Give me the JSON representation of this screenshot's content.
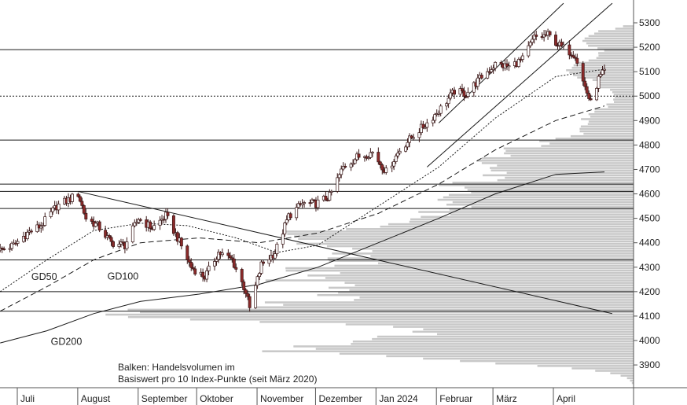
{
  "chart_data": {
    "type": "candlestick",
    "y_axis": {
      "ticks": [
        5300,
        5200,
        5100,
        5000,
        4900,
        4800,
        4700,
        4600,
        4500,
        4400,
        4300,
        4200,
        4100,
        4000,
        3900
      ],
      "range": [
        3810,
        5340
      ],
      "position": "right"
    },
    "x_axis": {
      "months": [
        {
          "label": "Juli",
          "date": "2023-07-01"
        },
        {
          "label": "August",
          "date": "2023-08-01"
        },
        {
          "label": "September",
          "date": "2023-09-01"
        },
        {
          "label": "Oktober",
          "date": "2023-10-01"
        },
        {
          "label": "November",
          "date": "2023-11-01"
        },
        {
          "label": "Dezember",
          "date": "2023-12-01"
        },
        {
          "label": "Jan 2024",
          "date": "2024-01-01"
        },
        {
          "label": "Februar",
          "date": "2024-02-01"
        },
        {
          "label": "März",
          "date": "2024-03-01"
        },
        {
          "label": "April",
          "date": "2024-04-01"
        }
      ]
    },
    "close_path": [
      [
        "2023-06-21",
        4370
      ],
      [
        "2023-06-28",
        4390
      ],
      [
        "2023-07-05",
        4440
      ],
      [
        "2023-07-12",
        4470
      ],
      [
        "2023-07-20",
        4550
      ],
      [
        "2023-07-27",
        4580
      ],
      [
        "2023-07-31",
        4600
      ],
      [
        "2023-08-04",
        4500
      ],
      [
        "2023-08-10",
        4470
      ],
      [
        "2023-08-17",
        4400
      ],
      [
        "2023-08-24",
        4390
      ],
      [
        "2023-08-31",
        4500
      ],
      [
        "2023-09-07",
        4460
      ],
      [
        "2023-09-14",
        4510
      ],
      [
        "2023-09-20",
        4420
      ],
      [
        "2023-09-27",
        4300
      ],
      [
        "2023-10-04",
        4260
      ],
      [
        "2023-10-11",
        4360
      ],
      [
        "2023-10-18",
        4330
      ],
      [
        "2023-10-25",
        4200
      ],
      [
        "2023-10-27",
        4130
      ],
      [
        "2023-11-02",
        4310
      ],
      [
        "2023-11-09",
        4360
      ],
      [
        "2023-11-16",
        4510
      ],
      [
        "2023-11-23",
        4560
      ],
      [
        "2023-11-30",
        4560
      ],
      [
        "2023-12-07",
        4590
      ],
      [
        "2023-12-14",
        4710
      ],
      [
        "2023-12-21",
        4750
      ],
      [
        "2023-12-29",
        4770
      ],
      [
        "2024-01-05",
        4690
      ],
      [
        "2024-01-12",
        4780
      ],
      [
        "2024-01-19",
        4840
      ],
      [
        "2024-01-26",
        4890
      ],
      [
        "2024-02-02",
        4950
      ],
      [
        "2024-02-09",
        5020
      ],
      [
        "2024-02-15",
        5010
      ],
      [
        "2024-02-23",
        5080
      ],
      [
        "2024-03-01",
        5130
      ],
      [
        "2024-03-08",
        5120
      ],
      [
        "2024-03-15",
        5150
      ],
      [
        "2024-03-21",
        5240
      ],
      [
        "2024-03-28",
        5250
      ],
      [
        "2024-04-04",
        5200
      ],
      [
        "2024-04-11",
        5170
      ],
      [
        "2024-04-15",
        5060
      ],
      [
        "2024-04-19",
        4970
      ],
      [
        "2024-04-23",
        5070
      ],
      [
        "2024-04-26",
        5100
      ]
    ],
    "moving_averages": [
      {
        "name": "GD50",
        "style": "dotted",
        "points": [
          [
            "2023-06-21",
            4200
          ],
          [
            "2023-07-15",
            4330
          ],
          [
            "2023-08-08",
            4450
          ],
          [
            "2023-09-01",
            4480
          ],
          [
            "2023-09-25",
            4470
          ],
          [
            "2023-10-20",
            4420
          ],
          [
            "2023-11-10",
            4360
          ],
          [
            "2023-12-01",
            4390
          ],
          [
            "2024-01-01",
            4550
          ],
          [
            "2024-02-01",
            4710
          ],
          [
            "2024-03-01",
            4910
          ],
          [
            "2024-04-01",
            5080
          ],
          [
            "2024-04-26",
            5110
          ]
        ]
      },
      {
        "name": "GD100",
        "style": "dashed",
        "points": [
          [
            "2023-06-21",
            4120
          ],
          [
            "2023-07-15",
            4220
          ],
          [
            "2023-08-08",
            4330
          ],
          [
            "2023-09-01",
            4400
          ],
          [
            "2023-10-01",
            4420
          ],
          [
            "2023-11-01",
            4400
          ],
          [
            "2023-12-01",
            4440
          ],
          [
            "2024-01-01",
            4520
          ],
          [
            "2024-02-01",
            4640
          ],
          [
            "2024-03-01",
            4780
          ],
          [
            "2024-04-01",
            4900
          ],
          [
            "2024-04-26",
            4960
          ]
        ]
      },
      {
        "name": "GD200",
        "style": "solid",
        "points": [
          [
            "2023-06-21",
            3990
          ],
          [
            "2023-07-15",
            4040
          ],
          [
            "2023-08-08",
            4110
          ],
          [
            "2023-09-01",
            4160
          ],
          [
            "2023-10-01",
            4190
          ],
          [
            "2023-11-01",
            4230
          ],
          [
            "2023-12-01",
            4300
          ],
          [
            "2024-01-01",
            4400
          ],
          [
            "2024-02-01",
            4500
          ],
          [
            "2024-03-01",
            4600
          ],
          [
            "2024-04-01",
            4680
          ],
          [
            "2024-04-26",
            4690
          ]
        ]
      }
    ],
    "horizontal_levels": [
      5190,
      4820,
      4640,
      4610,
      4540,
      4330,
      4200,
      4120
    ],
    "dotted_level": 5000,
    "trend_lines": [
      {
        "from": [
          "2023-07-31",
          4610
        ],
        "to": [
          "2024-04-30",
          4110
        ]
      },
      {
        "from": [
          "2024-02-01",
          4890
        ],
        "to": [
          "2024-04-05",
          5380
        ]
      },
      {
        "from": [
          "2024-01-26",
          4710
        ],
        "to": [
          "2024-04-30",
          5380
        ]
      }
    ],
    "volume_profile_note": [
      "Balken: Handelsvolumen im",
      "Basiswert pro 10 Index-Punkte (seit März 2020)"
    ],
    "ma_labels": [
      "GD50",
      "GD100",
      "GD200"
    ],
    "colors": {
      "up": "#ffffff",
      "down": "#8b2a2a",
      "volume_bar": "#c8c8c8",
      "line": "#1a1a1a"
    }
  }
}
